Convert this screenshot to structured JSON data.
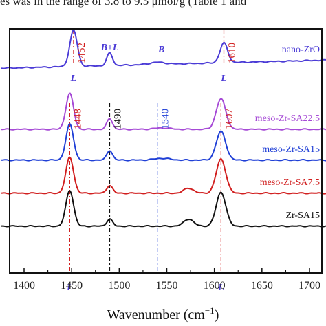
{
  "caption": "es was in the range of 3.8 to 9.5 μmol/g (Table 1 and",
  "chart_data": {
    "type": "line",
    "xlabel": "Wavenumber (cm",
    "xlabel_sup": "−1",
    "xlabel_tail": ")",
    "xlim": [
      1400,
      1700
    ],
    "x_ticks": [
      1400,
      1450,
      1500,
      1550,
      1600,
      1650,
      1700
    ],
    "series": [
      {
        "name": "nano-ZrO",
        "color": "#4b3bd6",
        "baseline": 0.12,
        "slope": 0.04,
        "peaks": [
          [
            1452,
            1.0,
            4
          ],
          [
            1490,
            0.35,
            3
          ],
          [
            1540,
            0.06,
            8
          ],
          [
            1610,
            0.55,
            4
          ]
        ]
      },
      {
        "name": "meso-Zr-SA22.5",
        "color": "#a64ad6",
        "baseline": 0.4,
        "slope": 0.0,
        "peaks": [
          [
            1448,
            1.0,
            4
          ],
          [
            1490,
            0.3,
            3
          ],
          [
            1545,
            0.04,
            8
          ],
          [
            1607,
            0.85,
            5
          ]
        ]
      },
      {
        "name": "meso-Zr-SA15",
        "color": "#1f3fd6",
        "baseline": 0.54,
        "slope": 0.0,
        "peaks": [
          [
            1448,
            1.0,
            4
          ],
          [
            1490,
            0.27,
            3
          ],
          [
            1545,
            0.05,
            8
          ],
          [
            1607,
            0.8,
            5
          ]
        ]
      },
      {
        "name": "meso-Zr-SA7.5",
        "color": "#d11f1f",
        "baseline": 0.69,
        "slope": 0.0,
        "peaks": [
          [
            1448,
            1.0,
            4
          ],
          [
            1490,
            0.22,
            3
          ],
          [
            1573,
            0.14,
            5
          ],
          [
            1607,
            0.95,
            5
          ]
        ]
      },
      {
        "name": "Zr-SA15",
        "color": "#111111",
        "baseline": 0.84,
        "slope": 0.0,
        "peaks": [
          [
            1448,
            1.0,
            4
          ],
          [
            1490,
            0.2,
            3
          ],
          [
            1573,
            0.2,
            5
          ],
          [
            1607,
            0.95,
            5
          ]
        ]
      }
    ],
    "reference_lines": [
      {
        "x": 1452,
        "label": "1452",
        "color": "#d11f1f",
        "group": "top"
      },
      {
        "x": 1610,
        "label": "1610",
        "color": "#d11f1f",
        "group": "top"
      },
      {
        "x": 1448,
        "label": "1448",
        "color": "#d11f1f",
        "group": "bottom"
      },
      {
        "x": 1490,
        "label": "1490",
        "color": "#111111",
        "group": "bottom"
      },
      {
        "x": 1540,
        "label": "1540",
        "color": "#1f3fd6",
        "group": "bottom"
      },
      {
        "x": 1607,
        "label": "1607",
        "color": "#d11f1f",
        "group": "bottom"
      }
    ],
    "annotations": [
      {
        "text": "B+L",
        "x": 1490,
        "color": "#4b3bd6"
      },
      {
        "text": "B",
        "x": 1540,
        "color": "#4b3bd6"
      },
      {
        "text": "L",
        "x": 1452,
        "color": "#4b3bd6"
      },
      {
        "text": "L",
        "x": 1610,
        "color": "#4b3bd6"
      },
      {
        "text": "L",
        "x": 1448,
        "color": "#4b3bd6"
      },
      {
        "text": "L",
        "x": 1607,
        "color": "#4b3bd6"
      }
    ],
    "legend": "inline-right",
    "grid": false
  }
}
